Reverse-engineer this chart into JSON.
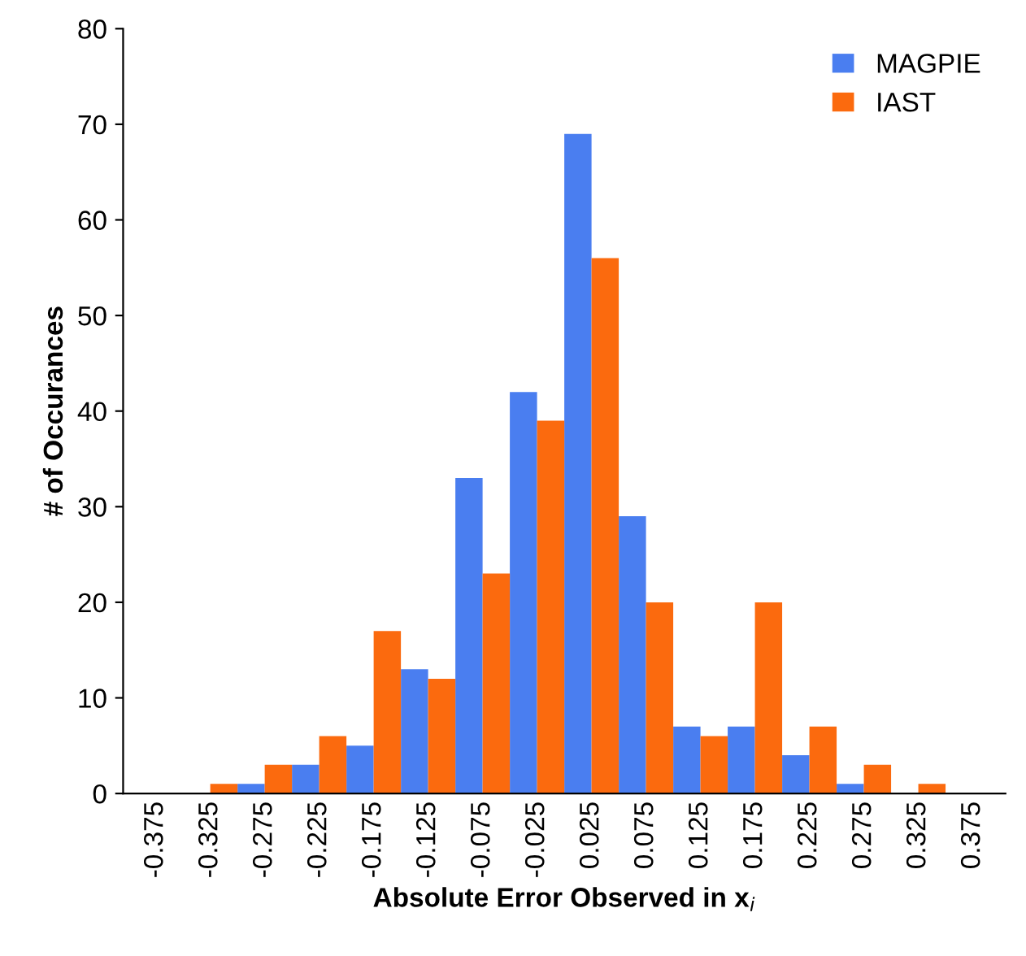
{
  "chart_data": {
    "type": "bar",
    "xlabel": "Absolute Error Observed in x$_{i}$",
    "ylabel": "# of Occurances",
    "categories": [
      "-0.375",
      "-0.325",
      "-0.275",
      "-0.225",
      "-0.175",
      "-0.125",
      "-0.075",
      "-0.025",
      "0.025",
      "0.075",
      "0.125",
      "0.175",
      "0.225",
      "0.275",
      "0.325",
      "0.375"
    ],
    "series": [
      {
        "name": "MAGPIE",
        "color": "#4a7ef0",
        "values": [
          0,
          0,
          1,
          3,
          5,
          13,
          33,
          42,
          69,
          29,
          7,
          7,
          4,
          1,
          0,
          0
        ]
      },
      {
        "name": "IAST",
        "color": "#fb6a0e",
        "values": [
          0,
          1,
          3,
          6,
          17,
          12,
          23,
          39,
          56,
          20,
          6,
          20,
          7,
          3,
          1,
          0
        ]
      }
    ],
    "ylim": [
      0,
      80
    ],
    "yticks": [
      0,
      10,
      20,
      30,
      40,
      50,
      60,
      70,
      80
    ],
    "grid": false,
    "legend": "top right"
  }
}
